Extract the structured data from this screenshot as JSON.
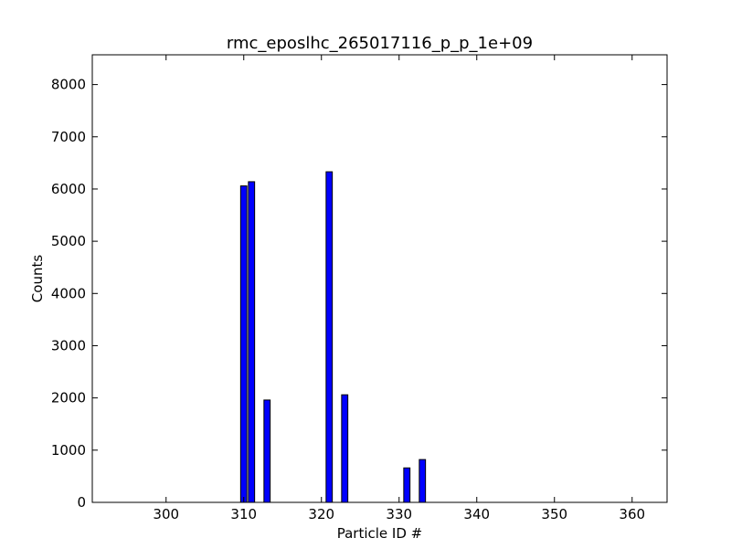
{
  "chart_data": {
    "type": "bar",
    "title": "rmc_eposlhc_265017116_p_p_1e+09",
    "xlabel": "Particle ID #",
    "ylabel": "Counts",
    "xlim": [
      290.5,
      364.5
    ],
    "ylim": [
      0,
      8570
    ],
    "bar_width": 0.8,
    "x": [
      310,
      311,
      313,
      321,
      323,
      331,
      333
    ],
    "values": [
      6060,
      6140,
      1960,
      6330,
      2060,
      660,
      820
    ],
    "xticks": [
      300,
      310,
      320,
      330,
      340,
      350,
      360
    ],
    "yticks": [
      0,
      1000,
      2000,
      3000,
      4000,
      5000,
      6000,
      7000,
      8000
    ],
    "xtick_labels": [
      "300",
      "310",
      "320",
      "330",
      "340",
      "350",
      "360"
    ],
    "ytick_labels": [
      "0",
      "1000",
      "2000",
      "3000",
      "4000",
      "5000",
      "6000",
      "7000",
      "8000"
    ],
    "grid": false,
    "colors": {
      "bar_fill": "#0000ff",
      "bar_edge": "#000000"
    }
  }
}
